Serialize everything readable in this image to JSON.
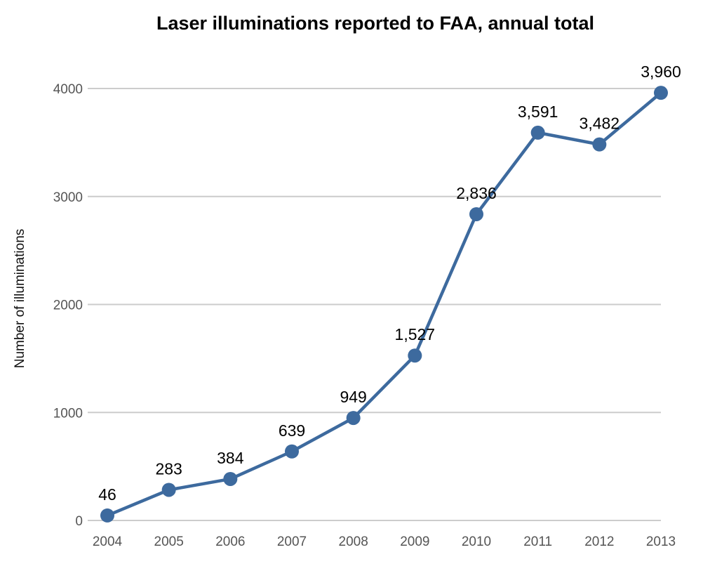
{
  "chart_data": {
    "type": "line",
    "title": "Laser illuminations reported to FAA, annual total",
    "xlabel": "",
    "ylabel": "Number of illuminations",
    "categories": [
      "2004",
      "2005",
      "2006",
      "2007",
      "2008",
      "2009",
      "2010",
      "2011",
      "2012",
      "2013"
    ],
    "values": [
      46,
      283,
      384,
      639,
      949,
      1527,
      2836,
      3591,
      3482,
      3960
    ],
    "data_labels": [
      "46",
      "283",
      "384",
      "639",
      "949",
      "1,527",
      "2,836",
      "3,591",
      "3,482",
      "3,960"
    ],
    "yticks": [
      "0",
      "1000",
      "2000",
      "3000",
      "4000"
    ],
    "ylim": [
      0,
      4000
    ],
    "grid": "horizontal",
    "colors": {
      "line": "#3d6a9e",
      "grid": "#cccccc",
      "tick_text": "#555555"
    }
  }
}
